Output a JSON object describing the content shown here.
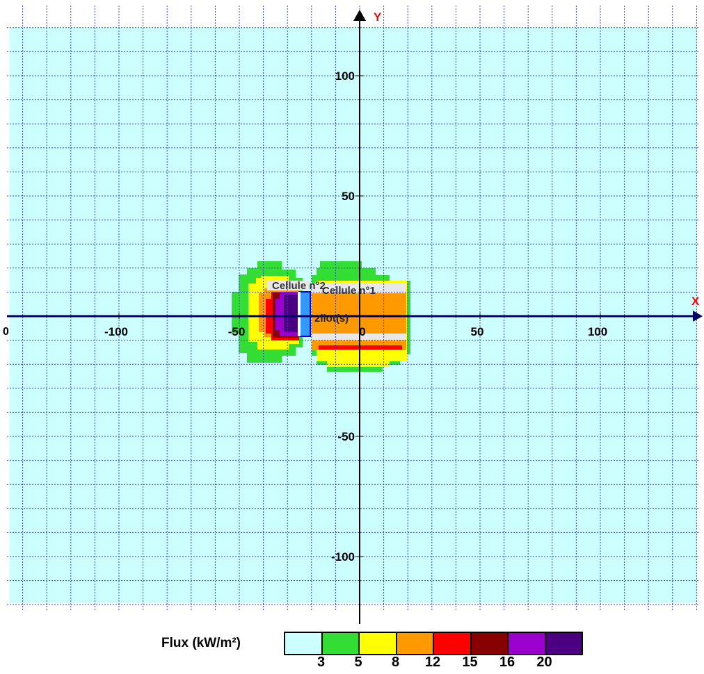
{
  "axes": {
    "x_label": "X",
    "y_label": "Y",
    "x_ticks": [
      -100,
      -50,
      0,
      50,
      100
    ],
    "y_ticks": [
      100,
      50,
      -50,
      -100
    ],
    "x_tick_labels": [
      "-100",
      "-50",
      "0",
      "50",
      "100"
    ],
    "y_tick_labels": [
      "100",
      "50",
      "-50",
      "-100"
    ],
    "x_left_clipped_label": "0",
    "grid": true,
    "grid_step": 10,
    "x_range": [
      -142,
      140
    ],
    "y_range": [
      -122,
      128
    ]
  },
  "annotations": {
    "cell2": "Cellule n°2",
    "cell1": "Cellule n°1",
    "islands": "2ilot(s)"
  },
  "legend": {
    "title": "Flux (kW/m²)",
    "values": [
      "3",
      "5",
      "8",
      "12",
      "15",
      "16",
      "20"
    ],
    "colors": [
      "#ccffff",
      "#33dd33",
      "#ffff00",
      "#ff9900",
      "#ff0000",
      "#880000",
      "#9900cc",
      "#4b0082"
    ]
  },
  "colors": {
    "background": "#ccffff",
    "grid": "#3344cc",
    "axis": "#000066",
    "axis_label": "#ff0000",
    "cell_blue": "#3399ff",
    "cell_light": "#e8e8e8"
  }
}
